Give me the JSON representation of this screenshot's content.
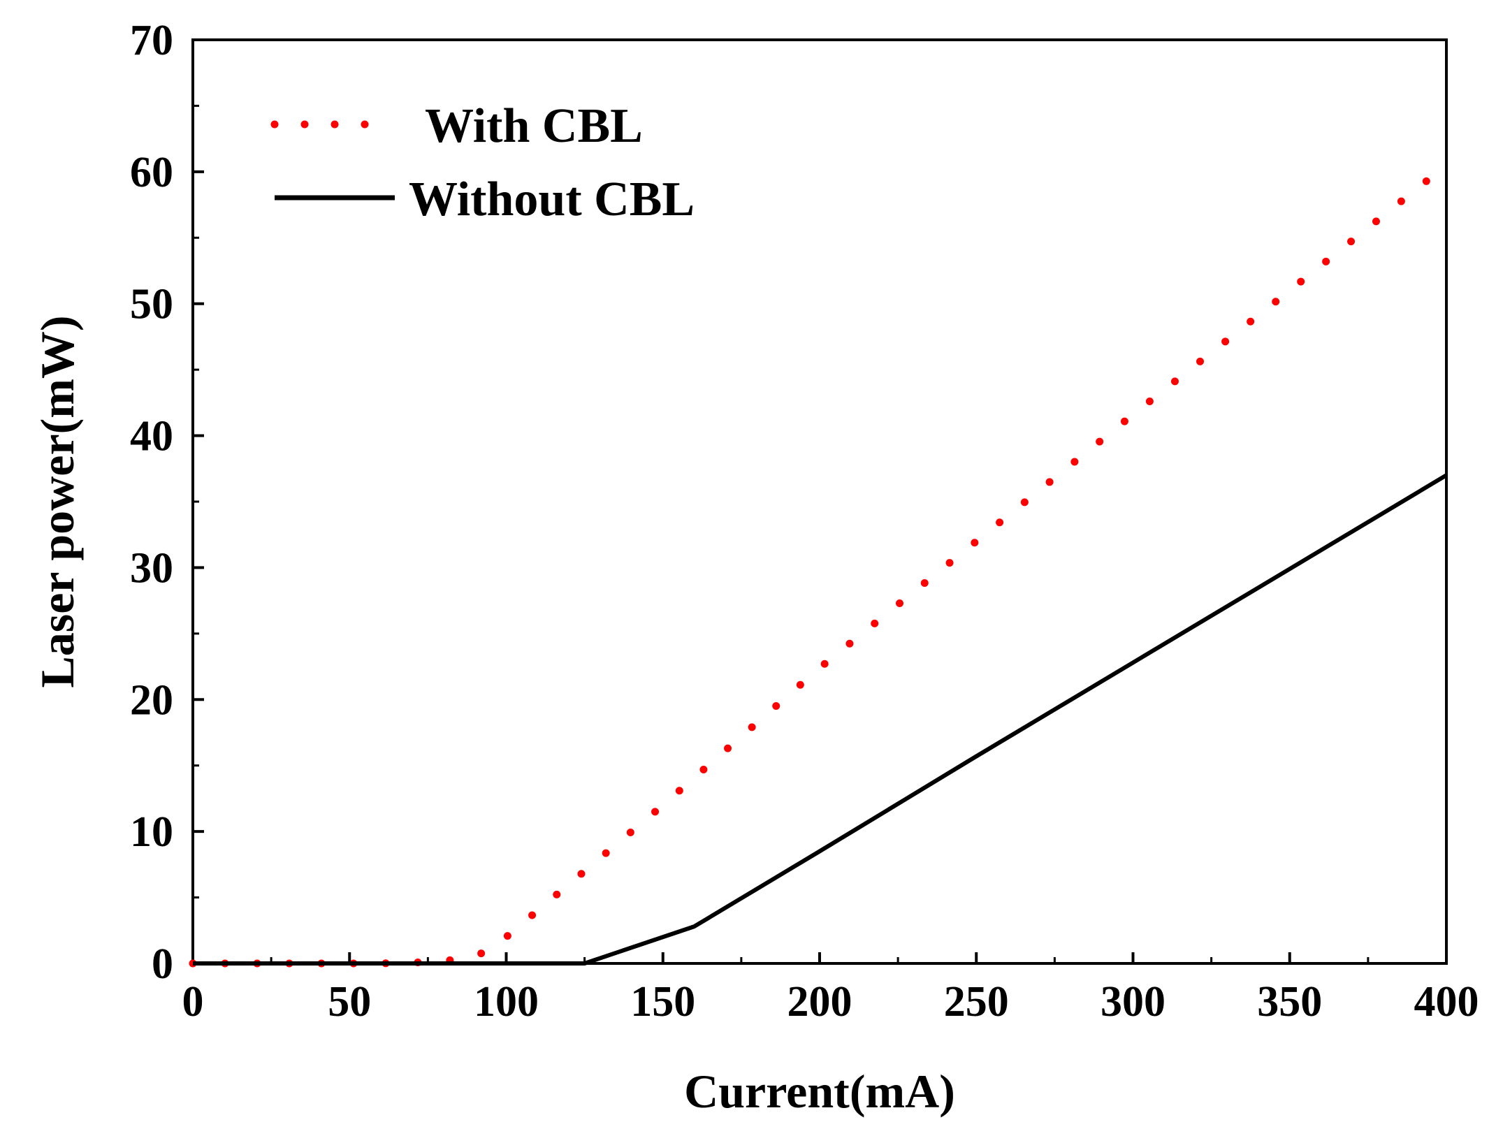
{
  "chart_data": {
    "type": "line",
    "title": "",
    "xlabel": "Current(mA)",
    "ylabel": "Laser power(mW)",
    "xlim": [
      0,
      400
    ],
    "ylim": [
      0,
      70
    ],
    "xticks": [
      0,
      50,
      100,
      150,
      200,
      250,
      300,
      350,
      400
    ],
    "yticks": [
      0,
      10,
      20,
      30,
      40,
      50,
      60,
      70
    ],
    "grid": false,
    "legend_position": "top-left",
    "series": [
      {
        "name": "With CBL",
        "style": "dotted",
        "color": "#ff0000",
        "x": [
          0,
          60,
          75,
          85,
          90,
          95,
          100,
          150,
          200,
          250,
          300,
          350,
          400
        ],
        "y": [
          0,
          0,
          0.1,
          0.3,
          0.6,
          1.0,
          2.0,
          12.0,
          22.4,
          32.0,
          41.6,
          51.0,
          60.5
        ]
      },
      {
        "name": "Without CBL",
        "style": "solid",
        "color": "#000000",
        "x": [
          0,
          125,
          160,
          200,
          250,
          300,
          350,
          400
        ],
        "y": [
          0,
          0,
          2.8,
          8.5,
          15.7,
          22.8,
          29.9,
          37.0
        ]
      }
    ]
  }
}
